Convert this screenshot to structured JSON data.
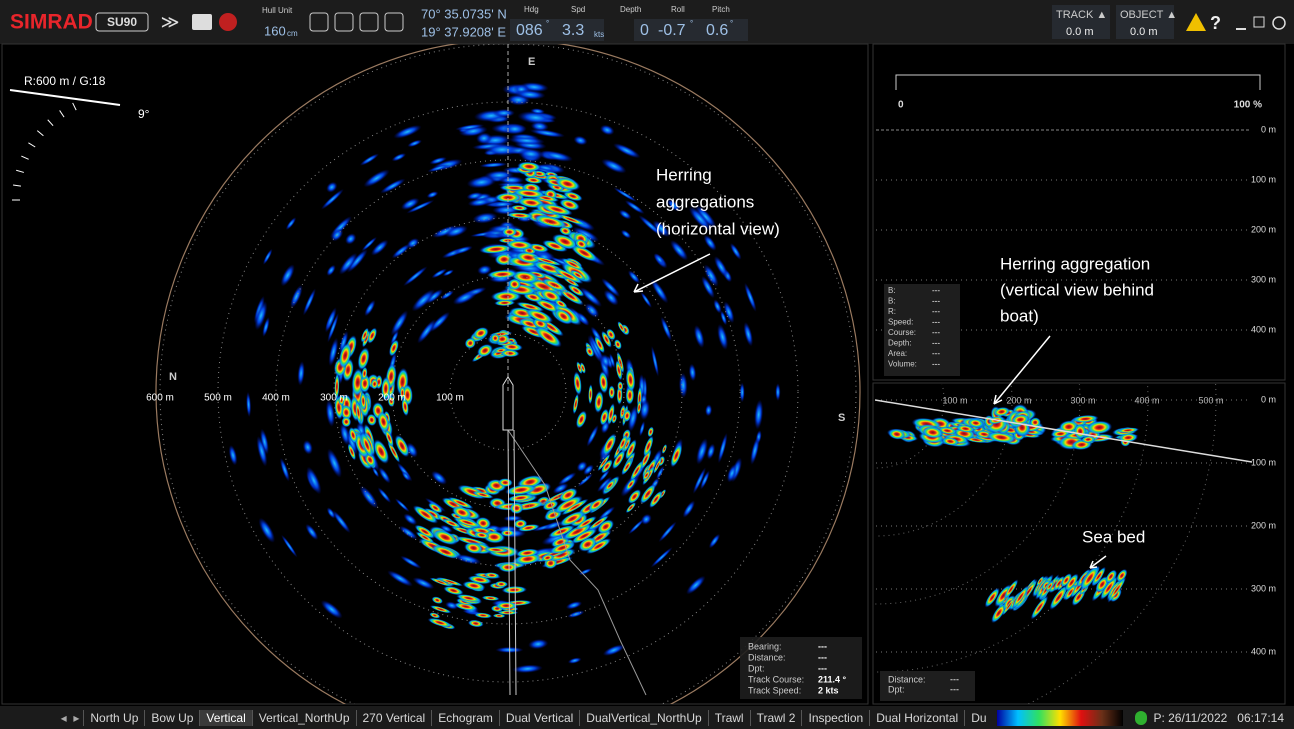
{
  "toolbar": {
    "brand": "SIMRAD",
    "model": "SU90",
    "hull_unit": {
      "label": "Hull Unit",
      "value": "160",
      "unit": "cm"
    },
    "position": {
      "lat": "70° 35.0735' N",
      "lon": "19° 37.9208' E"
    },
    "readouts": [
      {
        "label": "Hdg",
        "value": "086",
        "unit": "°"
      },
      {
        "label": "Spd",
        "value": "3.3",
        "unit": "kts"
      },
      {
        "label": "Depth",
        "value": "0",
        "unit": "m"
      },
      {
        "label": "Roll",
        "value": "-0.7",
        "unit": "°"
      },
      {
        "label": "Pitch",
        "value": "0.6",
        "unit": "°"
      }
    ],
    "track": {
      "label": "TRACK ▲",
      "value": "0.0 m"
    },
    "object": {
      "label": "OBJECT ▲",
      "value": "0.0 m"
    },
    "help": "?"
  },
  "horizontal_view": {
    "range_gain": "R:600 m / G:18",
    "tilt": "9°",
    "compass": {
      "north": "N",
      "east": "E",
      "south": "S"
    },
    "ranges": [
      "600 m",
      "500 m",
      "400 m",
      "300 m",
      "200 m",
      "100 m"
    ],
    "info": [
      {
        "label": "Bearing:",
        "value": "---"
      },
      {
        "label": "Distance:",
        "value": "---"
      },
      {
        "label": "Dpt:",
        "value": "---"
      },
      {
        "label": "Track Course:",
        "value": "211.4 °"
      },
      {
        "label": "Track Speed:",
        "value": "2 kts"
      }
    ]
  },
  "annotations": {
    "horizontal": [
      "Herring",
      "aggregations",
      "(horizontal view)"
    ],
    "vertical": [
      "Herring aggregation",
      "(vertical view behind",
      "boat)"
    ],
    "sea_bed": "Sea bed"
  },
  "echogram_panel": {
    "scale_min": "0",
    "scale_max": "100 %",
    "depths": [
      "0 m",
      "100 m",
      "200 m",
      "300 m",
      "400 m"
    ],
    "info": [
      {
        "label": "B:",
        "value": "---"
      },
      {
        "label": "B:",
        "value": "---"
      },
      {
        "label": "R:",
        "value": "---"
      },
      {
        "label": "Speed:",
        "value": "---"
      },
      {
        "label": "Course:",
        "value": "---"
      },
      {
        "label": "Depth:",
        "value": "---"
      },
      {
        "label": "Area:",
        "value": "---"
      },
      {
        "label": "Volume:",
        "value": "---"
      }
    ]
  },
  "vertical_panel": {
    "ranges": [
      "100 m",
      "200 m",
      "300 m",
      "400 m",
      "500 m"
    ],
    "depths": [
      "0 m",
      "100 m",
      "200 m",
      "300 m",
      "400 m"
    ],
    "info": [
      {
        "label": "Distance:",
        "value": "---"
      },
      {
        "label": "Dpt:",
        "value": "---"
      }
    ]
  },
  "status_bar": {
    "tabs": [
      "North Up",
      "Bow Up",
      "Vertical",
      "Vertical_NorthUp",
      "270 Vertical",
      "Echogram",
      "Dual Vertical",
      "DualVertical_NorthUp",
      "Trawl",
      "Trawl 2",
      "Inspection",
      "Dual Horizontal",
      "Du"
    ],
    "active_tab": 2,
    "date": "P: 26/11/2022",
    "time": "06:17:14"
  }
}
